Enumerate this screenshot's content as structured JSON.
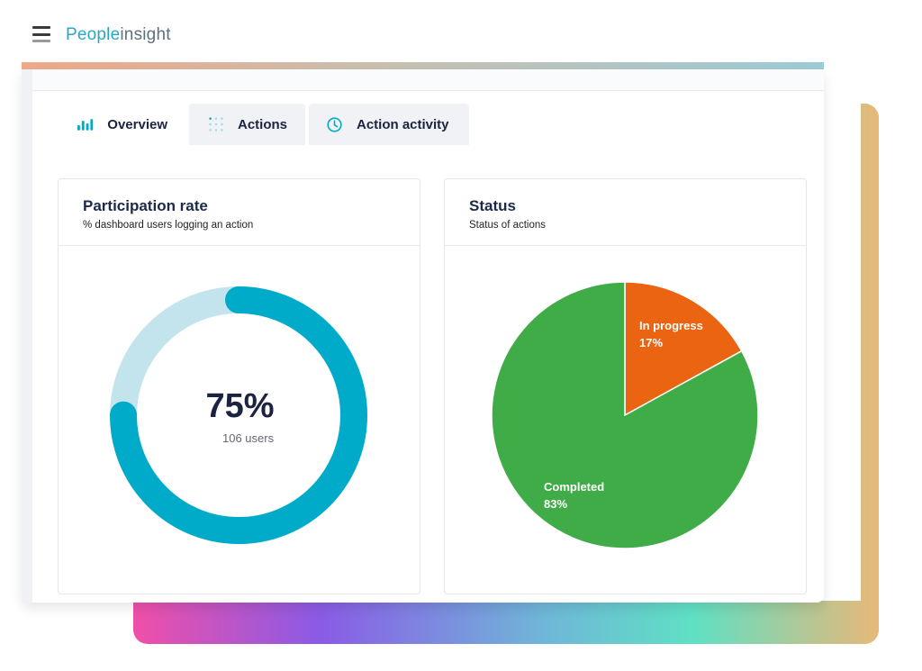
{
  "header": {
    "logo_part1": "People",
    "logo_part2": "insight"
  },
  "tabs": [
    {
      "label": "Overview",
      "icon": "bar-chart-icon",
      "active": true
    },
    {
      "label": "Actions",
      "icon": "dots-grid-icon",
      "active": false
    },
    {
      "label": "Action activity",
      "icon": "clock-icon",
      "active": false
    }
  ],
  "participation": {
    "title": "Participation rate",
    "subtitle": "% dashboard users logging an action",
    "value_label": "75%",
    "users_label": "106 users",
    "fraction": 0.75,
    "colors": {
      "fill": "#00abc9",
      "track": "#c3e4ec"
    }
  },
  "status": {
    "title": "Status",
    "subtitle": "Status of actions"
  },
  "chart_data": {
    "type": "pie",
    "title": "Status",
    "subtitle": "Status of actions",
    "categories": [
      "In progress",
      "Completed"
    ],
    "values": [
      17,
      83
    ],
    "labels": [
      {
        "name": "In progress",
        "value": "17%"
      },
      {
        "name": "Completed",
        "value": "83%"
      }
    ],
    "colors": [
      "#eb6411",
      "#40ac48"
    ]
  }
}
